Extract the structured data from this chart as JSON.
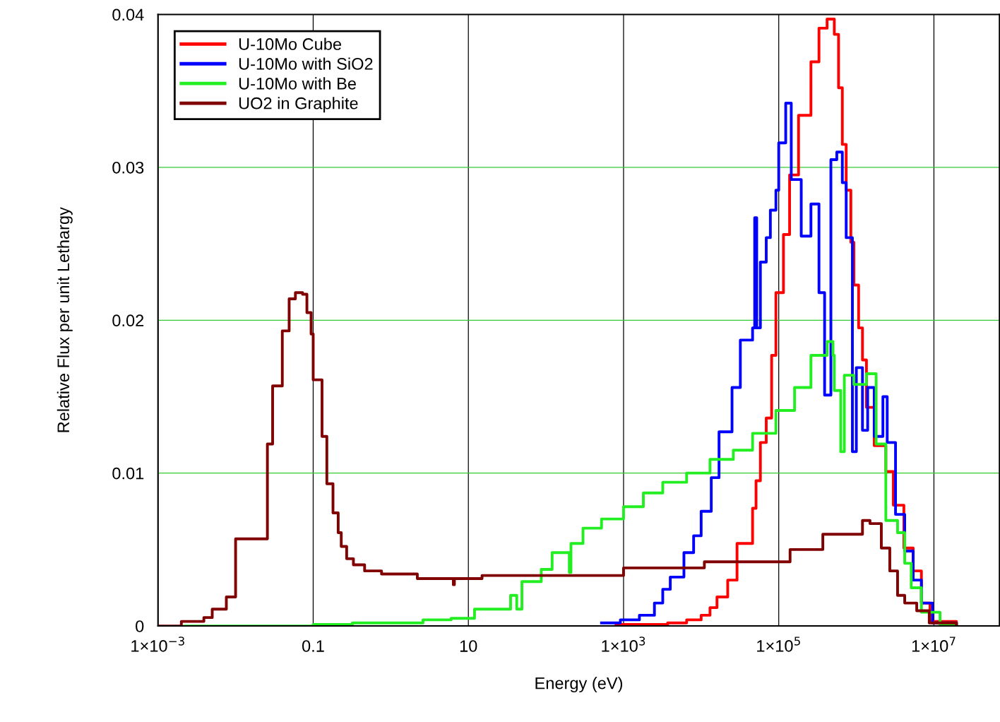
{
  "chart_data": {
    "type": "step",
    "xlabel": "Energy (eV)",
    "ylabel": "Relative Flux per unit Lethargy",
    "log": "x",
    "xlim": [
      0.001,
      70000000
    ],
    "ylim": [
      0,
      0.04
    ],
    "xticks": [
      {
        "value": 0.001,
        "label": "1×10$^{−3}$"
      },
      0.1,
      10,
      {
        "value": 1000,
        "label": "1×10$^{3}$"
      },
      {
        "value": 100000,
        "label": "1×10$^{5}$"
      },
      {
        "value": 10000000,
        "label": "1×10$^{7}$"
      }
    ],
    "yticks": [
      0,
      0.01,
      0.02,
      0.03,
      0.04
    ],
    "grid": true,
    "legend": "top left",
    "line_style": "solid",
    "marker": "none",
    "series": [
      {
        "name": "U-10Mo Cube",
        "color": "#ff0000",
        "x": [
          800,
          3700,
          6500,
          10000,
          13000,
          16000,
          22000,
          29000,
          46000,
          51000,
          58000,
          69000,
          81000,
          92000,
          115000,
          138000,
          180000,
          260000,
          330000,
          420000,
          520000,
          590000,
          660000,
          740000,
          850000,
          930000,
          1070000,
          1200000,
          1350000,
          1700000,
          2400000,
          3000000,
          4100000,
          5400000,
          6900000,
          8900000,
          19500000
        ],
        "values": [
          0.0001,
          0.0002,
          0.0004,
          0.0007,
          0.0012,
          0.0019,
          0.003,
          0.0054,
          0.0077,
          0.0095,
          0.012,
          0.0136,
          0.0177,
          0.0218,
          0.0256,
          0.0295,
          0.0334,
          0.0369,
          0.0391,
          0.0397,
          0.0387,
          0.0352,
          0.0315,
          0.0285,
          0.0251,
          0.0223,
          0.0195,
          0.0174,
          0.0143,
          0.0118,
          0.0101,
          0.0079,
          0.0051,
          0.0036,
          0.0015,
          0.0003,
          0
        ]
      },
      {
        "name": "U-10Mo with SiO2",
        "color": "#0000ff",
        "x": [
          520,
          910,
          1600,
          2500,
          3200,
          4000,
          6000,
          8000,
          10000,
          13500,
          17000,
          25000,
          32000,
          46000,
          49000,
          52000,
          58000,
          69000,
          78000,
          92000,
          100000,
          123000,
          145000,
          195000,
          260000,
          330000,
          390000,
          470000,
          560000,
          660000,
          740000,
          890000,
          1000000,
          1200000,
          1400000,
          1700000,
          2200000,
          2500000,
          3200000,
          4200000,
          5400000,
          6900000,
          9600000,
          19500000
        ],
        "values": [
          0.0002,
          0.0004,
          0.0007,
          0.0015,
          0.0024,
          0.0032,
          0.0048,
          0.0059,
          0.0075,
          0.0097,
          0.0127,
          0.0156,
          0.0187,
          0.0195,
          0.0267,
          0.0195,
          0.0238,
          0.0254,
          0.0272,
          0.0285,
          0.0316,
          0.0342,
          0.0292,
          0.0255,
          0.0276,
          0.0218,
          0.0151,
          0.0305,
          0.031,
          0.029,
          0.0254,
          0.0114,
          0.0169,
          0.0128,
          0.0156,
          0.0124,
          0.015,
          0.012,
          0.0073,
          0.0049,
          0.003,
          0.0015,
          0.0002,
          0
        ]
      },
      {
        "name": "U-10Mo with Be",
        "color": "#22ee22",
        "x": [
          0.0022,
          0.1,
          0.32,
          2.6,
          6.0,
          12,
          35,
          42,
          49,
          87,
          120,
          174,
          200,
          210,
          300,
          520,
          1000,
          1800,
          3200,
          6500,
          13000,
          26000,
          46000,
          92000,
          160000,
          260000,
          420000,
          500000,
          520000,
          630000,
          700000,
          930000,
          1350000,
          1800000,
          2400000,
          3400000,
          4200000,
          5100000,
          6900000,
          12000000,
          19500000
        ],
        "values": [
          0,
          0.0001,
          0.0002,
          0.0004,
          0.0005,
          0.0011,
          0.002,
          0.0011,
          0.0029,
          0.0037,
          0.0048,
          0.0048,
          0.0035,
          0.0054,
          0.0064,
          0.007,
          0.0078,
          0.0087,
          0.0094,
          0.01,
          0.0109,
          0.0115,
          0.0126,
          0.0141,
          0.0156,
          0.0177,
          0.0186,
          0.0177,
          0.0154,
          0.0114,
          0.0164,
          0.0158,
          0.0165,
          0.0119,
          0.0069,
          0.0061,
          0.0041,
          0.0025,
          0.0009,
          0.0001,
          0
        ]
      },
      {
        "name": "UO2 in Graphite",
        "color": "#800000",
        "x": [
          0.001,
          0.002,
          0.0039,
          0.005,
          0.0076,
          0.01,
          0.0257,
          0.03,
          0.04,
          0.049,
          0.059,
          0.073,
          0.083,
          0.094,
          0.1,
          0.13,
          0.15,
          0.18,
          0.21,
          0.23,
          0.27,
          0.33,
          0.46,
          0.76,
          2.2,
          6.2,
          6.4,
          6.6,
          15,
          1000,
          11000,
          140000,
          370000,
          1200000,
          1500000,
          2100000,
          2700000,
          3400000,
          4200000,
          6000000,
          8700000,
          19500000
        ],
        "values": [
          0,
          0.0003,
          0.00055,
          0.0011,
          0.0019,
          0.0057,
          0.0119,
          0.0157,
          0.0193,
          0.0214,
          0.0218,
          0.0217,
          0.0205,
          0.0191,
          0.0161,
          0.0124,
          0.0093,
          0.0074,
          0.0061,
          0.0052,
          0.0044,
          0.004,
          0.0036,
          0.0034,
          0.0031,
          0.0031,
          0.0027,
          0.0031,
          0.0033,
          0.0038,
          0.0042,
          0.005,
          0.006,
          0.0069,
          0.0067,
          0.0051,
          0.0036,
          0.002,
          0.0015,
          0.001,
          0.0002,
          0
        ]
      }
    ]
  }
}
